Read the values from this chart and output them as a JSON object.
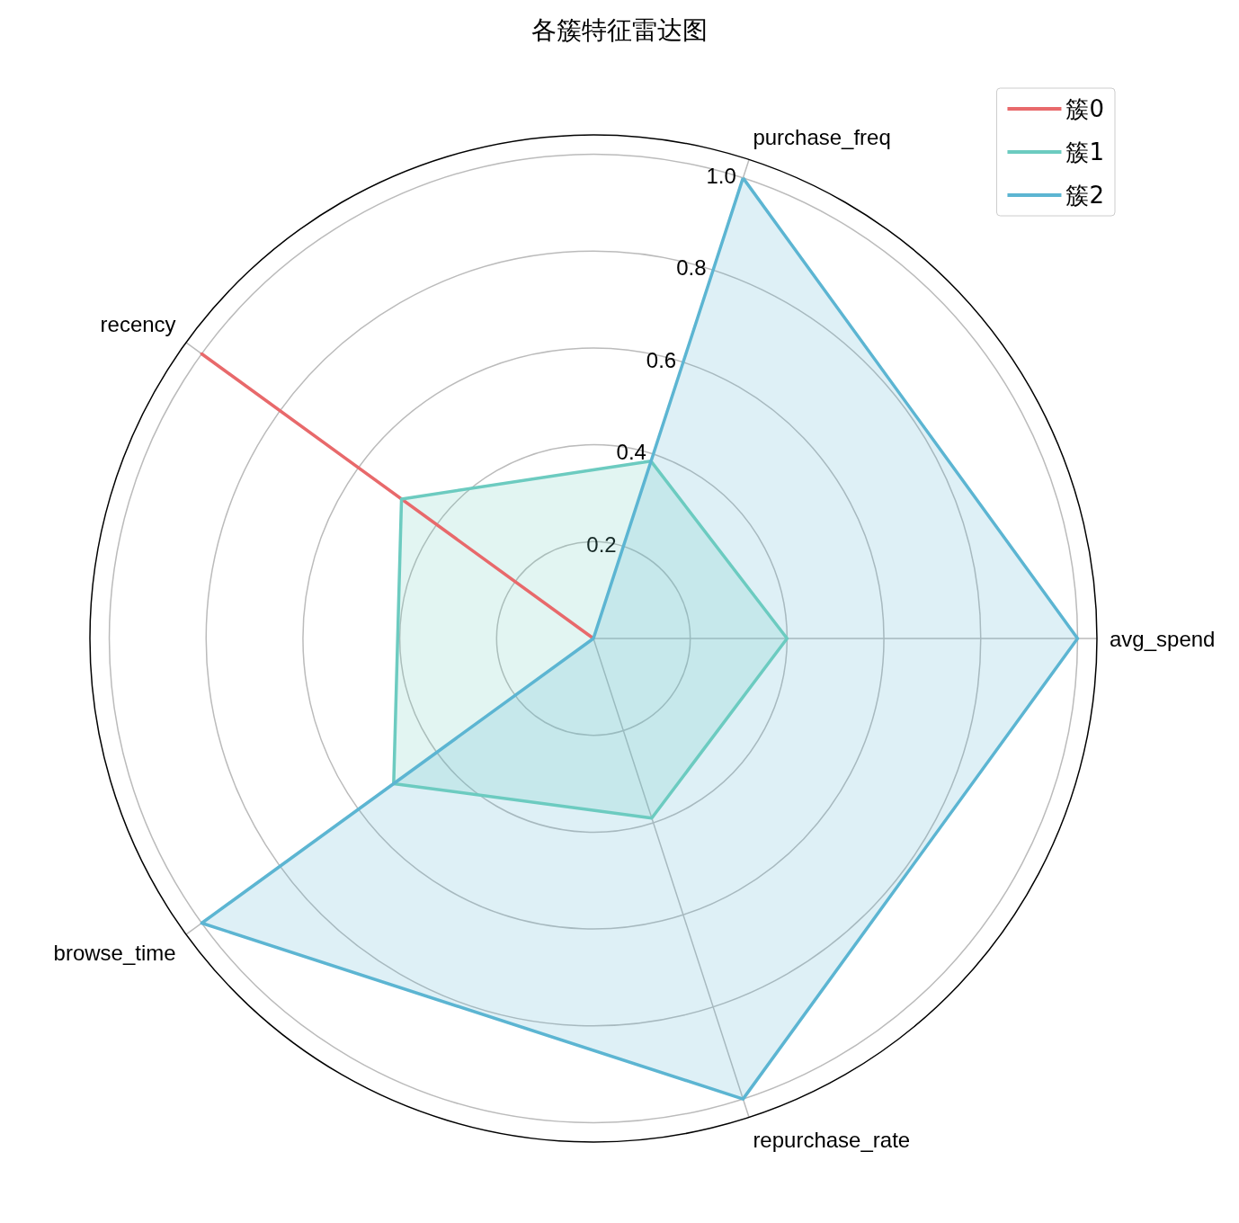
{
  "chart_data": {
    "type": "radar",
    "title": "各簇特征雷达图",
    "categories": [
      "purchase_freq",
      "avg_spend",
      "repurchase_rate",
      "browse_time",
      "recency"
    ],
    "ylim": [
      0,
      1.04
    ],
    "yticks": [
      0.2,
      0.4,
      0.6,
      0.8,
      {
        "value": 1,
        "label": "1.0"
      }
    ],
    "grid": true,
    "legend": "top right",
    "marker": "none",
    "line_style": "solid",
    "series": [
      {
        "name": "簇0",
        "color": "#e8696b",
        "values": [
          0,
          0,
          0,
          0,
          1.0
        ]
      },
      {
        "name": "簇1",
        "color": "#6ccbc0",
        "values": [
          0.385,
          0.4,
          0.39,
          0.51,
          0.49
        ]
      },
      {
        "name": "簇2",
        "color": "#5cb5d2",
        "values": [
          1.0,
          1.0,
          1.0,
          1.0,
          0
        ]
      }
    ]
  }
}
